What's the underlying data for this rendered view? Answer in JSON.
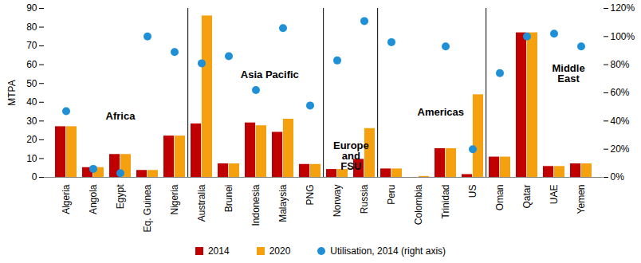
{
  "chart_data": {
    "type": "bar",
    "ylabel": "MTPA",
    "categories": [
      "Algeria",
      "Angola",
      "Egypt",
      "Eq. Guinea",
      "Nigeria",
      "Australia",
      "Brunei",
      "Indonesia",
      "Malaysia",
      "PNG",
      "Norway",
      "Russia",
      "Peru",
      "Colombia",
      "Trinidad",
      "US",
      "Oman",
      "Qatar",
      "UAE",
      "Yemen"
    ],
    "series": [
      {
        "name": "2014",
        "color": "#C00000",
        "values": [
          27,
          5.2,
          12.2,
          3.7,
          22,
          28.5,
          7.2,
          29,
          24,
          6.9,
          4.2,
          9.6,
          4.5,
          null,
          15.3,
          1.5,
          10.8,
          77,
          5.8,
          7.2
        ]
      },
      {
        "name": "2020",
        "color": "#F5A00F",
        "values": [
          27,
          5.2,
          12.2,
          3.7,
          22,
          86,
          7.2,
          27.5,
          31,
          6.9,
          4.2,
          26,
          4.5,
          0.5,
          15.3,
          44,
          10.8,
          77,
          5.8,
          7.2
        ]
      },
      {
        "name": "Utilisation, 2014 (right axis)",
        "type": "scatter",
        "marker": "circle",
        "axis": "y2",
        "color": "#1F8FD6",
        "values": [
          47,
          6,
          3,
          100,
          89,
          81,
          86,
          62,
          106,
          51,
          83,
          111,
          96,
          null,
          93,
          20,
          74,
          100,
          102,
          93
        ]
      }
    ],
    "ylim": [
      0,
      90
    ],
    "yticks": [
      0,
      10,
      20,
      30,
      40,
      50,
      60,
      70,
      80,
      90
    ],
    "y2lim": [
      0,
      120
    ],
    "y2ticks": [
      {
        "value": 0,
        "label": "0%"
      },
      {
        "value": 20,
        "label": "20%"
      },
      {
        "value": 40,
        "label": "40%"
      },
      {
        "value": 60,
        "label": "60%"
      },
      {
        "value": 80,
        "label": "80%"
      },
      {
        "value": 100,
        "label": "100%"
      },
      {
        "value": 120,
        "label": "120%"
      }
    ],
    "regions": [
      {
        "name": "Africa",
        "categories": [
          "Algeria",
          "Angola",
          "Egypt",
          "Eq. Guinea",
          "Nigeria"
        ]
      },
      {
        "name": "Asia Pacific",
        "categories": [
          "Australia",
          "Brunei",
          "Indonesia",
          "Malaysia",
          "PNG"
        ]
      },
      {
        "name": "Europe and FSU",
        "categories": [
          "Norway",
          "Russia"
        ]
      },
      {
        "name": "Americas",
        "categories": [
          "Peru",
          "Colombia",
          "Trinidad",
          "US"
        ]
      },
      {
        "name": "Middle East",
        "categories": [
          "Oman",
          "Qatar",
          "UAE",
          "Yemen"
        ]
      }
    ],
    "grid": false,
    "legend": "bottom"
  }
}
